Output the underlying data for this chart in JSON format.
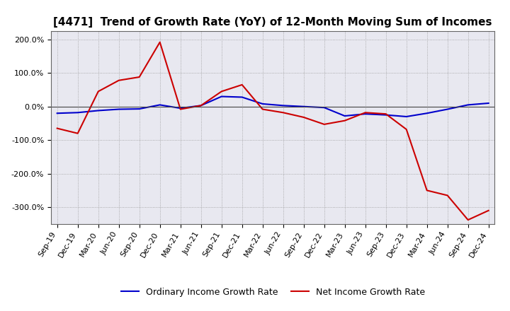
{
  "title": "[4471]  Trend of Growth Rate (YoY) of 12-Month Moving Sum of Incomes",
  "x_labels": [
    "Sep-19",
    "Dec-19",
    "Mar-20",
    "Jun-20",
    "Sep-20",
    "Dec-20",
    "Mar-21",
    "Jun-21",
    "Sep-21",
    "Dec-21",
    "Mar-22",
    "Jun-22",
    "Sep-22",
    "Dec-22",
    "Mar-23",
    "Jun-23",
    "Sep-23",
    "Dec-23",
    "Mar-24",
    "Jun-24",
    "Sep-24",
    "Dec-24"
  ],
  "ordinary_income": [
    -20,
    -18,
    -12,
    -8,
    -7,
    5,
    -5,
    3,
    30,
    28,
    8,
    3,
    0,
    -3,
    -28,
    -22,
    -25,
    -30,
    -20,
    -8,
    5,
    10
  ],
  "net_income": [
    -65,
    -80,
    45,
    78,
    88,
    192,
    -8,
    3,
    45,
    65,
    -8,
    -18,
    -32,
    -53,
    -42,
    -18,
    -22,
    -68,
    -250,
    -265,
    -338,
    -310
  ],
  "ylim": [
    -350,
    225
  ],
  "yticks": [
    -300,
    -200,
    -100,
    0,
    100,
    200
  ],
  "ytick_labels": [
    "-300.0%",
    "-200.0%",
    "-100.0%",
    "0.0%",
    "100.0%",
    "200.0%"
  ],
  "ordinary_color": "#0000cc",
  "net_color": "#cc0000",
  "grid_color": "#999999",
  "plot_bg_color": "#e8e8f0",
  "fig_bg_color": "#ffffff",
  "title_fontsize": 11,
  "tick_fontsize": 8,
  "legend_ordinary": "Ordinary Income Growth Rate",
  "legend_net": "Net Income Growth Rate"
}
